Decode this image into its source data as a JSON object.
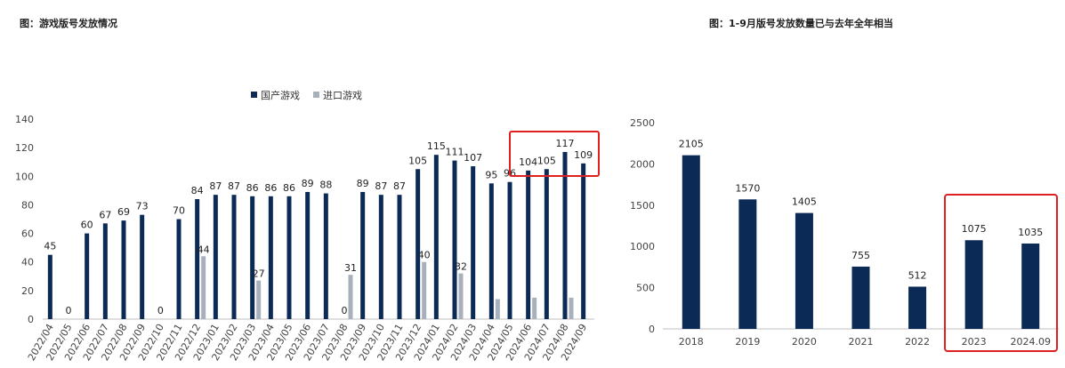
{
  "colors": {
    "domestic": "#0b2a55",
    "imported": "#a8b0bb",
    "highlight": "#e02020",
    "bar2": "#0b2a55"
  },
  "chart_data": [
    {
      "type": "bar",
      "title": "图：游戏版号发放情况",
      "categories": [
        "2022/04",
        "2022/05",
        "2022/06",
        "2022/07",
        "2022/08",
        "2022/09",
        "2022/10",
        "2022/11",
        "2022/12",
        "2023/01",
        "2023/02",
        "2023/03",
        "2023/04",
        "2023/05",
        "2023/06",
        "2023/07",
        "2023/08",
        "2023/09",
        "2023/10",
        "2023/11",
        "2023/12",
        "2024/01",
        "2024/02",
        "2024/03",
        "2024/04",
        "2024/05",
        "2024/06",
        "2024/07",
        "2024/08",
        "2024/09"
      ],
      "series": [
        {
          "name": "国产游戏",
          "values": [
            45,
            0,
            60,
            67,
            69,
            73,
            0,
            70,
            84,
            87,
            87,
            86,
            86,
            86,
            89,
            88,
            0,
            89,
            87,
            87,
            105,
            115,
            111,
            107,
            95,
            96,
            104,
            105,
            117,
            109
          ],
          "labels": [
            "45",
            "0",
            "60",
            "67",
            "69",
            "73",
            "0",
            "70",
            "84",
            "87",
            "87",
            "86",
            "86",
            "86",
            "89",
            "88",
            "0",
            "89",
            "87",
            "87",
            "105",
            "115",
            "111",
            "107",
            "95",
            "96",
            "104",
            "105",
            "117",
            "109"
          ]
        },
        {
          "name": "进口游戏",
          "values": [
            0,
            0,
            0,
            0,
            0,
            0,
            0,
            0,
            44,
            0,
            0,
            27,
            0,
            0,
            0,
            0,
            31,
            0,
            0,
            0,
            40,
            0,
            32,
            0,
            14,
            0,
            15,
            0,
            15,
            0
          ],
          "labels": [
            "",
            "",
            "",
            "",
            "",
            "",
            "",
            "",
            "44",
            "",
            "",
            "27",
            "",
            "",
            "",
            "",
            "31",
            "",
            "",
            "",
            "40",
            "",
            "32",
            "",
            "",
            "",
            "",
            "",
            "",
            ""
          ]
        }
      ],
      "ylim": [
        0,
        140
      ],
      "yticks": [
        "0",
        "20",
        "40",
        "60",
        "80",
        "100",
        "120",
        "140"
      ],
      "grid": false,
      "legend": "top"
    },
    {
      "type": "bar",
      "title": "图：1-9月版号发放数量已与去年全年相当",
      "categories": [
        "2018",
        "2019",
        "2020",
        "2021",
        "2022",
        "2023",
        "2024.09"
      ],
      "values": [
        2105,
        1570,
        1405,
        755,
        512,
        1075,
        1035
      ],
      "labels": [
        "2105",
        "1570",
        "1405",
        "755",
        "512",
        "1075",
        "1035"
      ],
      "ylim": [
        0,
        2500
      ],
      "yticks": [
        "0",
        "500",
        "1000",
        "1500",
        "2000",
        "2500"
      ],
      "grid": false
    }
  ]
}
